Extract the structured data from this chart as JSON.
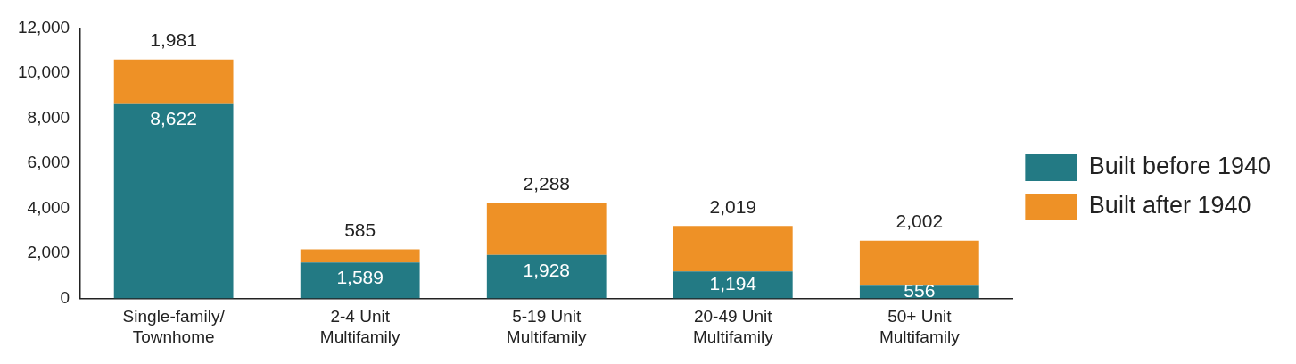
{
  "chart_data": {
    "type": "bar",
    "stacked": true,
    "categories": [
      "Single-family/ Townhome",
      "2-4 Unit Multifamily",
      "5-19 Unit Multifamily",
      "20-49 Unit Multifamily",
      "50+ Unit Multifamily"
    ],
    "series": [
      {
        "name": "Built before 1940",
        "color": "#237a84",
        "values": [
          8622,
          1589,
          1928,
          1194,
          556
        ],
        "value_labels": [
          "8,622",
          "1,589",
          "1,928",
          "1,194",
          "556"
        ]
      },
      {
        "name": "Built after 1940",
        "color": "#ee9126",
        "values": [
          1981,
          585,
          2288,
          2019,
          2002
        ],
        "value_labels": [
          "1,981",
          "585",
          "2,288",
          "2,019",
          "2,002"
        ]
      }
    ],
    "ylim": [
      0,
      12000
    ],
    "yticks": [
      {
        "value": 0,
        "label": "0"
      },
      {
        "value": 2000,
        "label": "2,000"
      },
      {
        "value": 4000,
        "label": "4,000"
      },
      {
        "value": 6000,
        "label": "6,000"
      },
      {
        "value": 8000,
        "label": "8,000"
      },
      {
        "value": 10000,
        "label": "10,000"
      },
      {
        "value": 12000,
        "label": "12,000"
      }
    ],
    "grid": false,
    "legend": "right"
  }
}
